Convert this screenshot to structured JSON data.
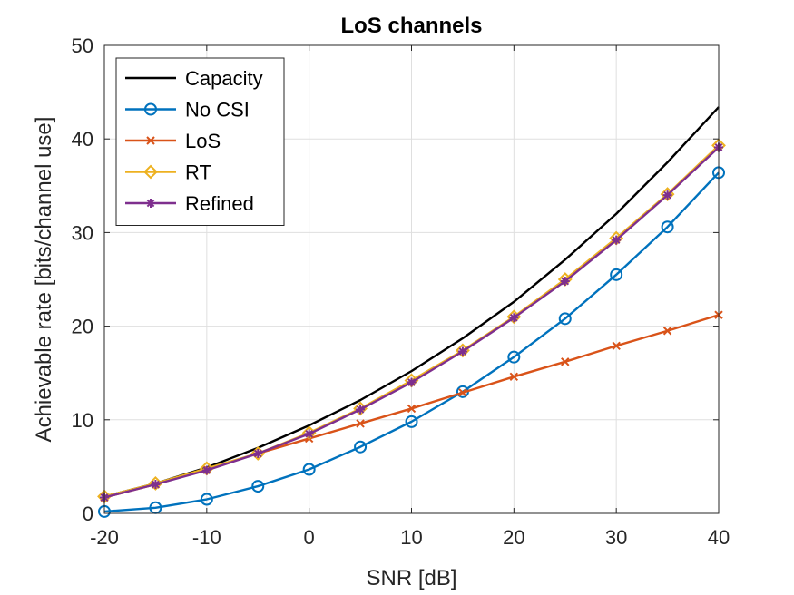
{
  "chart_data": {
    "type": "line",
    "title": "LoS channels",
    "xlabel": "SNR [dB]",
    "ylabel": "Achievable rate [bits/channel use]",
    "xlim": [
      -20,
      40
    ],
    "ylim": [
      0,
      50
    ],
    "xticks": [
      -20,
      -10,
      0,
      10,
      20,
      30,
      40
    ],
    "yticks": [
      0,
      10,
      20,
      30,
      40,
      50
    ],
    "grid": true,
    "legend_position": "top-left",
    "x": [
      -20,
      -15,
      -10,
      -5,
      0,
      5,
      10,
      15,
      20,
      25,
      30,
      35,
      40
    ],
    "series": [
      {
        "name": "Capacity",
        "color": "#000000",
        "marker": "none",
        "values": [
          1.8,
          3.2,
          4.9,
          7.0,
          9.4,
          12.1,
          15.2,
          18.7,
          22.6,
          27.1,
          32.0,
          37.5,
          43.4
        ]
      },
      {
        "name": "No CSI",
        "color": "#0072BD",
        "marker": "circle",
        "values": [
          0.2,
          0.6,
          1.5,
          2.9,
          4.7,
          7.1,
          9.8,
          13.0,
          16.7,
          20.8,
          25.5,
          30.6,
          36.4
        ]
      },
      {
        "name": "LoS",
        "color": "#D95319",
        "marker": "x",
        "values": [
          1.7,
          3.1,
          4.7,
          6.4,
          8.0,
          9.6,
          11.2,
          12.9,
          14.6,
          16.2,
          17.9,
          19.5,
          21.2
        ]
      },
      {
        "name": "RT",
        "color": "#EDB120",
        "marker": "diamond",
        "values": [
          1.8,
          3.2,
          4.8,
          6.4,
          8.6,
          11.2,
          14.2,
          17.4,
          21.0,
          25.0,
          29.4,
          34.1,
          39.3
        ]
      },
      {
        "name": "Refined",
        "color": "#7E2F8E",
        "marker": "star",
        "values": [
          1.7,
          3.1,
          4.6,
          6.4,
          8.5,
          11.1,
          14.0,
          17.3,
          20.9,
          24.8,
          29.2,
          34.0,
          39.1
        ]
      }
    ]
  }
}
